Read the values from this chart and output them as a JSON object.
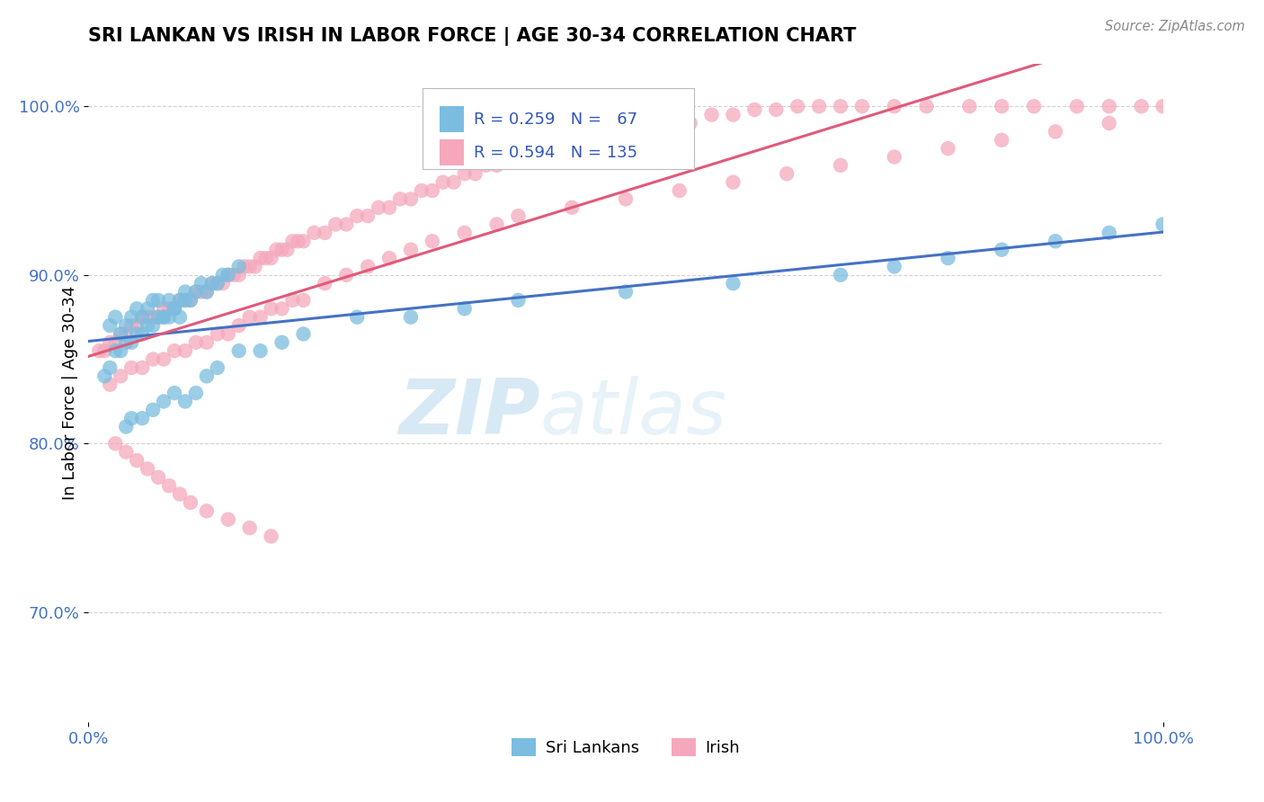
{
  "title": "SRI LANKAN VS IRISH IN LABOR FORCE | AGE 30-34 CORRELATION CHART",
  "source_text": "Source: ZipAtlas.com",
  "ylabel": "In Labor Force | Age 30-34",
  "xlim": [
    0.0,
    1.0
  ],
  "ylim": [
    0.635,
    1.025
  ],
  "x_tick_labels": [
    "0.0%",
    "100.0%"
  ],
  "x_tick_values": [
    0.0,
    1.0
  ],
  "y_tick_labels": [
    "70.0%",
    "80.0%",
    "90.0%",
    "100.0%"
  ],
  "y_tick_values": [
    0.7,
    0.8,
    0.9,
    1.0
  ],
  "color_sri": "#7bbde0",
  "color_irish": "#f5a8bc",
  "line_color_sri": "#4472c4",
  "line_color_irish": "#e05a7a",
  "watermark_zip": "ZIP",
  "watermark_atlas": "atlas",
  "sri_x": [
    0.02,
    0.025,
    0.03,
    0.035,
    0.04,
    0.045,
    0.05,
    0.055,
    0.06,
    0.065,
    0.07,
    0.075,
    0.08,
    0.085,
    0.09,
    0.095,
    0.1,
    0.105,
    0.11,
    0.115,
    0.12,
    0.125,
    0.13,
    0.14,
    0.015,
    0.02,
    0.025,
    0.03,
    0.035,
    0.04,
    0.045,
    0.05,
    0.055,
    0.06,
    0.065,
    0.07,
    0.075,
    0.08,
    0.085,
    0.09,
    0.035,
    0.04,
    0.05,
    0.06,
    0.07,
    0.08,
    0.09,
    0.1,
    0.11,
    0.12,
    0.14,
    0.16,
    0.18,
    0.2,
    0.25,
    0.3,
    0.35,
    0.4,
    0.5,
    0.6,
    0.7,
    0.75,
    0.8,
    0.85,
    0.9,
    0.95,
    1.0
  ],
  "sri_y": [
    0.87,
    0.875,
    0.865,
    0.87,
    0.875,
    0.88,
    0.875,
    0.88,
    0.885,
    0.885,
    0.875,
    0.885,
    0.88,
    0.885,
    0.89,
    0.885,
    0.89,
    0.895,
    0.89,
    0.895,
    0.895,
    0.9,
    0.9,
    0.905,
    0.84,
    0.845,
    0.855,
    0.855,
    0.86,
    0.86,
    0.865,
    0.865,
    0.87,
    0.87,
    0.875,
    0.875,
    0.875,
    0.88,
    0.875,
    0.885,
    0.81,
    0.815,
    0.815,
    0.82,
    0.825,
    0.83,
    0.825,
    0.83,
    0.84,
    0.845,
    0.855,
    0.855,
    0.86,
    0.865,
    0.875,
    0.875,
    0.88,
    0.885,
    0.89,
    0.895,
    0.9,
    0.905,
    0.91,
    0.915,
    0.92,
    0.925,
    0.93
  ],
  "irish_x": [
    0.01,
    0.015,
    0.02,
    0.025,
    0.03,
    0.035,
    0.04,
    0.045,
    0.05,
    0.055,
    0.06,
    0.065,
    0.07,
    0.075,
    0.08,
    0.085,
    0.09,
    0.095,
    0.1,
    0.105,
    0.11,
    0.115,
    0.12,
    0.125,
    0.13,
    0.135,
    0.14,
    0.145,
    0.15,
    0.155,
    0.16,
    0.165,
    0.17,
    0.175,
    0.18,
    0.185,
    0.19,
    0.195,
    0.2,
    0.21,
    0.22,
    0.23,
    0.24,
    0.25,
    0.26,
    0.27,
    0.28,
    0.29,
    0.3,
    0.31,
    0.32,
    0.33,
    0.34,
    0.35,
    0.36,
    0.37,
    0.38,
    0.39,
    0.4,
    0.42,
    0.44,
    0.46,
    0.48,
    0.5,
    0.52,
    0.54,
    0.56,
    0.58,
    0.6,
    0.62,
    0.64,
    0.66,
    0.68,
    0.7,
    0.72,
    0.75,
    0.78,
    0.82,
    0.85,
    0.88,
    0.92,
    0.95,
    0.98,
    1.0,
    0.02,
    0.03,
    0.04,
    0.05,
    0.06,
    0.07,
    0.08,
    0.09,
    0.1,
    0.11,
    0.12,
    0.13,
    0.14,
    0.15,
    0.16,
    0.17,
    0.18,
    0.19,
    0.2,
    0.22,
    0.24,
    0.26,
    0.28,
    0.3,
    0.32,
    0.35,
    0.38,
    0.4,
    0.45,
    0.5,
    0.55,
    0.6,
    0.65,
    0.7,
    0.75,
    0.8,
    0.85,
    0.9,
    0.95,
    0.025,
    0.035,
    0.045,
    0.055,
    0.065,
    0.075,
    0.085,
    0.095,
    0.11,
    0.13,
    0.15,
    0.17
  ],
  "irish_y": [
    0.855,
    0.855,
    0.86,
    0.86,
    0.865,
    0.865,
    0.87,
    0.87,
    0.875,
    0.875,
    0.875,
    0.875,
    0.88,
    0.88,
    0.88,
    0.885,
    0.885,
    0.885,
    0.89,
    0.89,
    0.89,
    0.895,
    0.895,
    0.895,
    0.9,
    0.9,
    0.9,
    0.905,
    0.905,
    0.905,
    0.91,
    0.91,
    0.91,
    0.915,
    0.915,
    0.915,
    0.92,
    0.92,
    0.92,
    0.925,
    0.925,
    0.93,
    0.93,
    0.935,
    0.935,
    0.94,
    0.94,
    0.945,
    0.945,
    0.95,
    0.95,
    0.955,
    0.955,
    0.96,
    0.96,
    0.965,
    0.965,
    0.97,
    0.97,
    0.975,
    0.975,
    0.98,
    0.98,
    0.985,
    0.985,
    0.99,
    0.99,
    0.995,
    0.995,
    0.998,
    0.998,
    1.0,
    1.0,
    1.0,
    1.0,
    1.0,
    1.0,
    1.0,
    1.0,
    1.0,
    1.0,
    1.0,
    1.0,
    1.0,
    0.835,
    0.84,
    0.845,
    0.845,
    0.85,
    0.85,
    0.855,
    0.855,
    0.86,
    0.86,
    0.865,
    0.865,
    0.87,
    0.875,
    0.875,
    0.88,
    0.88,
    0.885,
    0.885,
    0.895,
    0.9,
    0.905,
    0.91,
    0.915,
    0.92,
    0.925,
    0.93,
    0.935,
    0.94,
    0.945,
    0.95,
    0.955,
    0.96,
    0.965,
    0.97,
    0.975,
    0.98,
    0.985,
    0.99,
    0.8,
    0.795,
    0.79,
    0.785,
    0.78,
    0.775,
    0.77,
    0.765,
    0.76,
    0.755,
    0.75,
    0.745
  ]
}
